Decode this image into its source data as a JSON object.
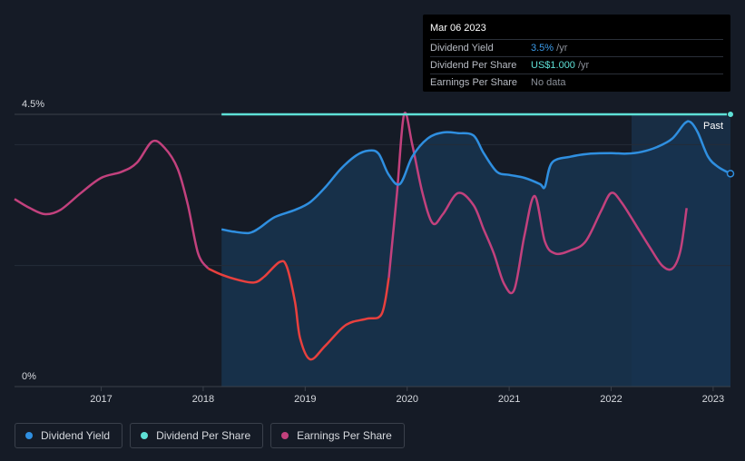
{
  "tooltip": {
    "date": "Mar 06 2023",
    "rows": [
      {
        "label": "Dividend Yield",
        "value": "3.5%",
        "suffix": " /yr"
      },
      {
        "label": "Dividend Per Share",
        "value": "US$1.000",
        "suffix": " /yr"
      },
      {
        "label": "Earnings Per Share",
        "value": "No data",
        "suffix": ""
      }
    ]
  },
  "legend": [
    {
      "label": "Dividend Yield",
      "color": "#2f8fe0"
    },
    {
      "label": "Dividend Per Share",
      "color": "#5ee0d6"
    },
    {
      "label": "Earnings Per Share",
      "color": "#c2417d"
    }
  ],
  "chart_data": {
    "type": "line",
    "y_tick_labels": [
      "4.5%",
      "0%"
    ],
    "ylim": [
      0,
      4.5
    ],
    "xlim": [
      2016.15,
      2023.17
    ],
    "x_ticks": [
      "2017",
      "2018",
      "2019",
      "2020",
      "2021",
      "2022",
      "2023"
    ],
    "past_label": "Past",
    "colors": {
      "yield": "#2f8fe0",
      "dps": "#5ee0d6",
      "eps_pos": "#c2417d",
      "eps_neg": "#e8403e",
      "area": "#173450",
      "past_area": "#1c3d5c"
    },
    "series": [
      {
        "name": "Dividend Yield",
        "x": [
          2018.18,
          2018.3,
          2018.45,
          2018.55,
          2018.7,
          2018.9,
          2019.05,
          2019.2,
          2019.35,
          2019.5,
          2019.62,
          2019.72,
          2019.82,
          2019.93,
          2020.05,
          2020.2,
          2020.35,
          2020.5,
          2020.65,
          2020.75,
          2020.88,
          2021.0,
          2021.15,
          2021.3,
          2021.35,
          2021.42,
          2021.6,
          2021.8,
          2022.0,
          2022.15,
          2022.3,
          2022.45,
          2022.6,
          2022.72,
          2022.78,
          2022.85,
          2022.95,
          2023.05,
          2023.17
        ],
        "y": [
          2.6,
          2.56,
          2.54,
          2.62,
          2.8,
          2.92,
          3.05,
          3.3,
          3.6,
          3.82,
          3.9,
          3.85,
          3.5,
          3.35,
          3.8,
          4.1,
          4.2,
          4.19,
          4.15,
          3.86,
          3.55,
          3.5,
          3.45,
          3.35,
          3.3,
          3.7,
          3.8,
          3.85,
          3.86,
          3.85,
          3.88,
          3.96,
          4.1,
          4.35,
          4.37,
          4.2,
          3.8,
          3.63,
          3.52
        ]
      },
      {
        "name": "Dividend Per Share",
        "x": [
          2018.18,
          2023.17
        ],
        "y": [
          4.5,
          4.5
        ]
      },
      {
        "name": "Earnings Per Share",
        "x": [
          2016.15,
          2016.3,
          2016.45,
          2016.6,
          2016.8,
          2017.0,
          2017.2,
          2017.35,
          2017.5,
          2017.62,
          2017.75,
          2017.85,
          2017.95,
          2018.05,
          2018.18,
          2018.35,
          2018.5,
          2018.6,
          2018.75,
          2018.82,
          2018.9,
          2018.95,
          2019.05,
          2019.2,
          2019.4,
          2019.6,
          2019.75,
          2019.82,
          2019.9,
          2019.97,
          2020.05,
          2020.15,
          2020.25,
          2020.35,
          2020.5,
          2020.65,
          2020.75,
          2020.85,
          2020.95,
          2021.05,
          2021.15,
          2021.25,
          2021.35,
          2021.45,
          2021.6,
          2021.75,
          2021.9,
          2022.0,
          2022.1,
          2022.25,
          2022.38,
          2022.5,
          2022.6,
          2022.68,
          2022.74
        ],
        "y": [
          3.1,
          2.95,
          2.85,
          2.92,
          3.2,
          3.45,
          3.55,
          3.7,
          4.05,
          3.95,
          3.6,
          3.0,
          2.2,
          1.95,
          1.85,
          1.76,
          1.72,
          1.82,
          2.06,
          1.98,
          1.4,
          0.8,
          0.45,
          0.68,
          1.02,
          1.12,
          1.2,
          1.8,
          3.2,
          4.5,
          4.0,
          3.2,
          2.7,
          2.85,
          3.2,
          3.0,
          2.6,
          2.2,
          1.7,
          1.6,
          2.5,
          3.15,
          2.4,
          2.2,
          2.25,
          2.4,
          2.9,
          3.2,
          3.05,
          2.65,
          2.3,
          2.0,
          1.95,
          2.25,
          2.95
        ]
      }
    ]
  }
}
